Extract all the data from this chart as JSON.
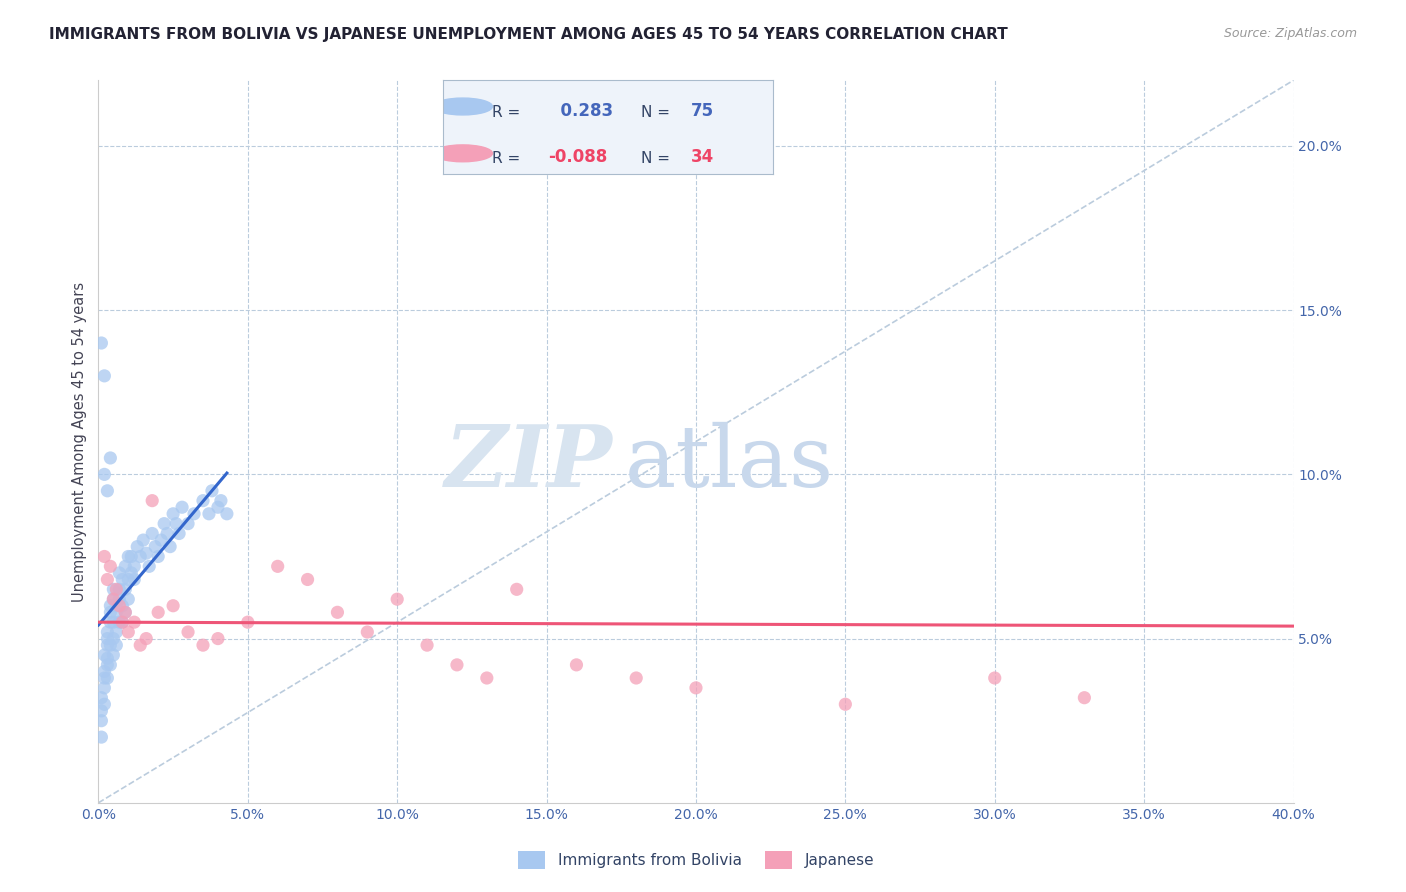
{
  "title": "IMMIGRANTS FROM BOLIVIA VS JAPANESE UNEMPLOYMENT AMONG AGES 45 TO 54 YEARS CORRELATION CHART",
  "source": "Source: ZipAtlas.com",
  "ylabel": "Unemployment Among Ages 45 to 54 years",
  "xlim": [
    0.0,
    0.4
  ],
  "ylim": [
    0.0,
    0.22
  ],
  "blue_color": "#A8C8F0",
  "pink_color": "#F4A0B8",
  "blue_line_color": "#3366CC",
  "pink_line_color": "#EE5577",
  "diagonal_color": "#BBCCDD",
  "watermark_color": "#D8E4F0",
  "R_blue": 0.283,
  "N_blue": 75,
  "R_pink": -0.088,
  "N_pink": 34,
  "blue_scatter_x": [
    0.001,
    0.001,
    0.001,
    0.001,
    0.002,
    0.002,
    0.002,
    0.002,
    0.002,
    0.003,
    0.003,
    0.003,
    0.003,
    0.003,
    0.003,
    0.004,
    0.004,
    0.004,
    0.004,
    0.004,
    0.005,
    0.005,
    0.005,
    0.005,
    0.005,
    0.006,
    0.006,
    0.006,
    0.006,
    0.007,
    0.007,
    0.007,
    0.007,
    0.008,
    0.008,
    0.008,
    0.009,
    0.009,
    0.009,
    0.01,
    0.01,
    0.01,
    0.011,
    0.011,
    0.012,
    0.012,
    0.013,
    0.014,
    0.015,
    0.016,
    0.017,
    0.018,
    0.019,
    0.02,
    0.021,
    0.022,
    0.023,
    0.024,
    0.025,
    0.026,
    0.027,
    0.028,
    0.03,
    0.032,
    0.035,
    0.037,
    0.038,
    0.04,
    0.041,
    0.043,
    0.002,
    0.003,
    0.004,
    0.001,
    0.002
  ],
  "blue_scatter_y": [
    0.025,
    0.032,
    0.028,
    0.02,
    0.035,
    0.04,
    0.038,
    0.03,
    0.045,
    0.042,
    0.048,
    0.038,
    0.052,
    0.044,
    0.05,
    0.055,
    0.048,
    0.06,
    0.042,
    0.058,
    0.062,
    0.055,
    0.05,
    0.045,
    0.065,
    0.058,
    0.052,
    0.06,
    0.048,
    0.055,
    0.065,
    0.07,
    0.062,
    0.068,
    0.06,
    0.055,
    0.072,
    0.065,
    0.058,
    0.075,
    0.068,
    0.062,
    0.07,
    0.075,
    0.072,
    0.068,
    0.078,
    0.075,
    0.08,
    0.076,
    0.072,
    0.082,
    0.078,
    0.075,
    0.08,
    0.085,
    0.082,
    0.078,
    0.088,
    0.085,
    0.082,
    0.09,
    0.085,
    0.088,
    0.092,
    0.088,
    0.095,
    0.09,
    0.092,
    0.088,
    0.1,
    0.095,
    0.105,
    0.14,
    0.13
  ],
  "pink_scatter_x": [
    0.002,
    0.003,
    0.004,
    0.005,
    0.006,
    0.007,
    0.008,
    0.009,
    0.01,
    0.012,
    0.014,
    0.016,
    0.018,
    0.02,
    0.025,
    0.03,
    0.035,
    0.04,
    0.05,
    0.06,
    0.07,
    0.08,
    0.09,
    0.1,
    0.11,
    0.12,
    0.13,
    0.14,
    0.16,
    0.18,
    0.2,
    0.25,
    0.3,
    0.33
  ],
  "pink_scatter_y": [
    0.075,
    0.068,
    0.072,
    0.062,
    0.065,
    0.06,
    0.055,
    0.058,
    0.052,
    0.055,
    0.048,
    0.05,
    0.092,
    0.058,
    0.06,
    0.052,
    0.048,
    0.05,
    0.055,
    0.072,
    0.068,
    0.058,
    0.052,
    0.062,
    0.048,
    0.042,
    0.038,
    0.065,
    0.042,
    0.038,
    0.035,
    0.03,
    0.038,
    0.032
  ],
  "xticks": [
    0.0,
    0.05,
    0.1,
    0.15,
    0.2,
    0.25,
    0.3,
    0.35,
    0.4
  ],
  "yticks_right": [
    0.05,
    0.1,
    0.15,
    0.2
  ]
}
